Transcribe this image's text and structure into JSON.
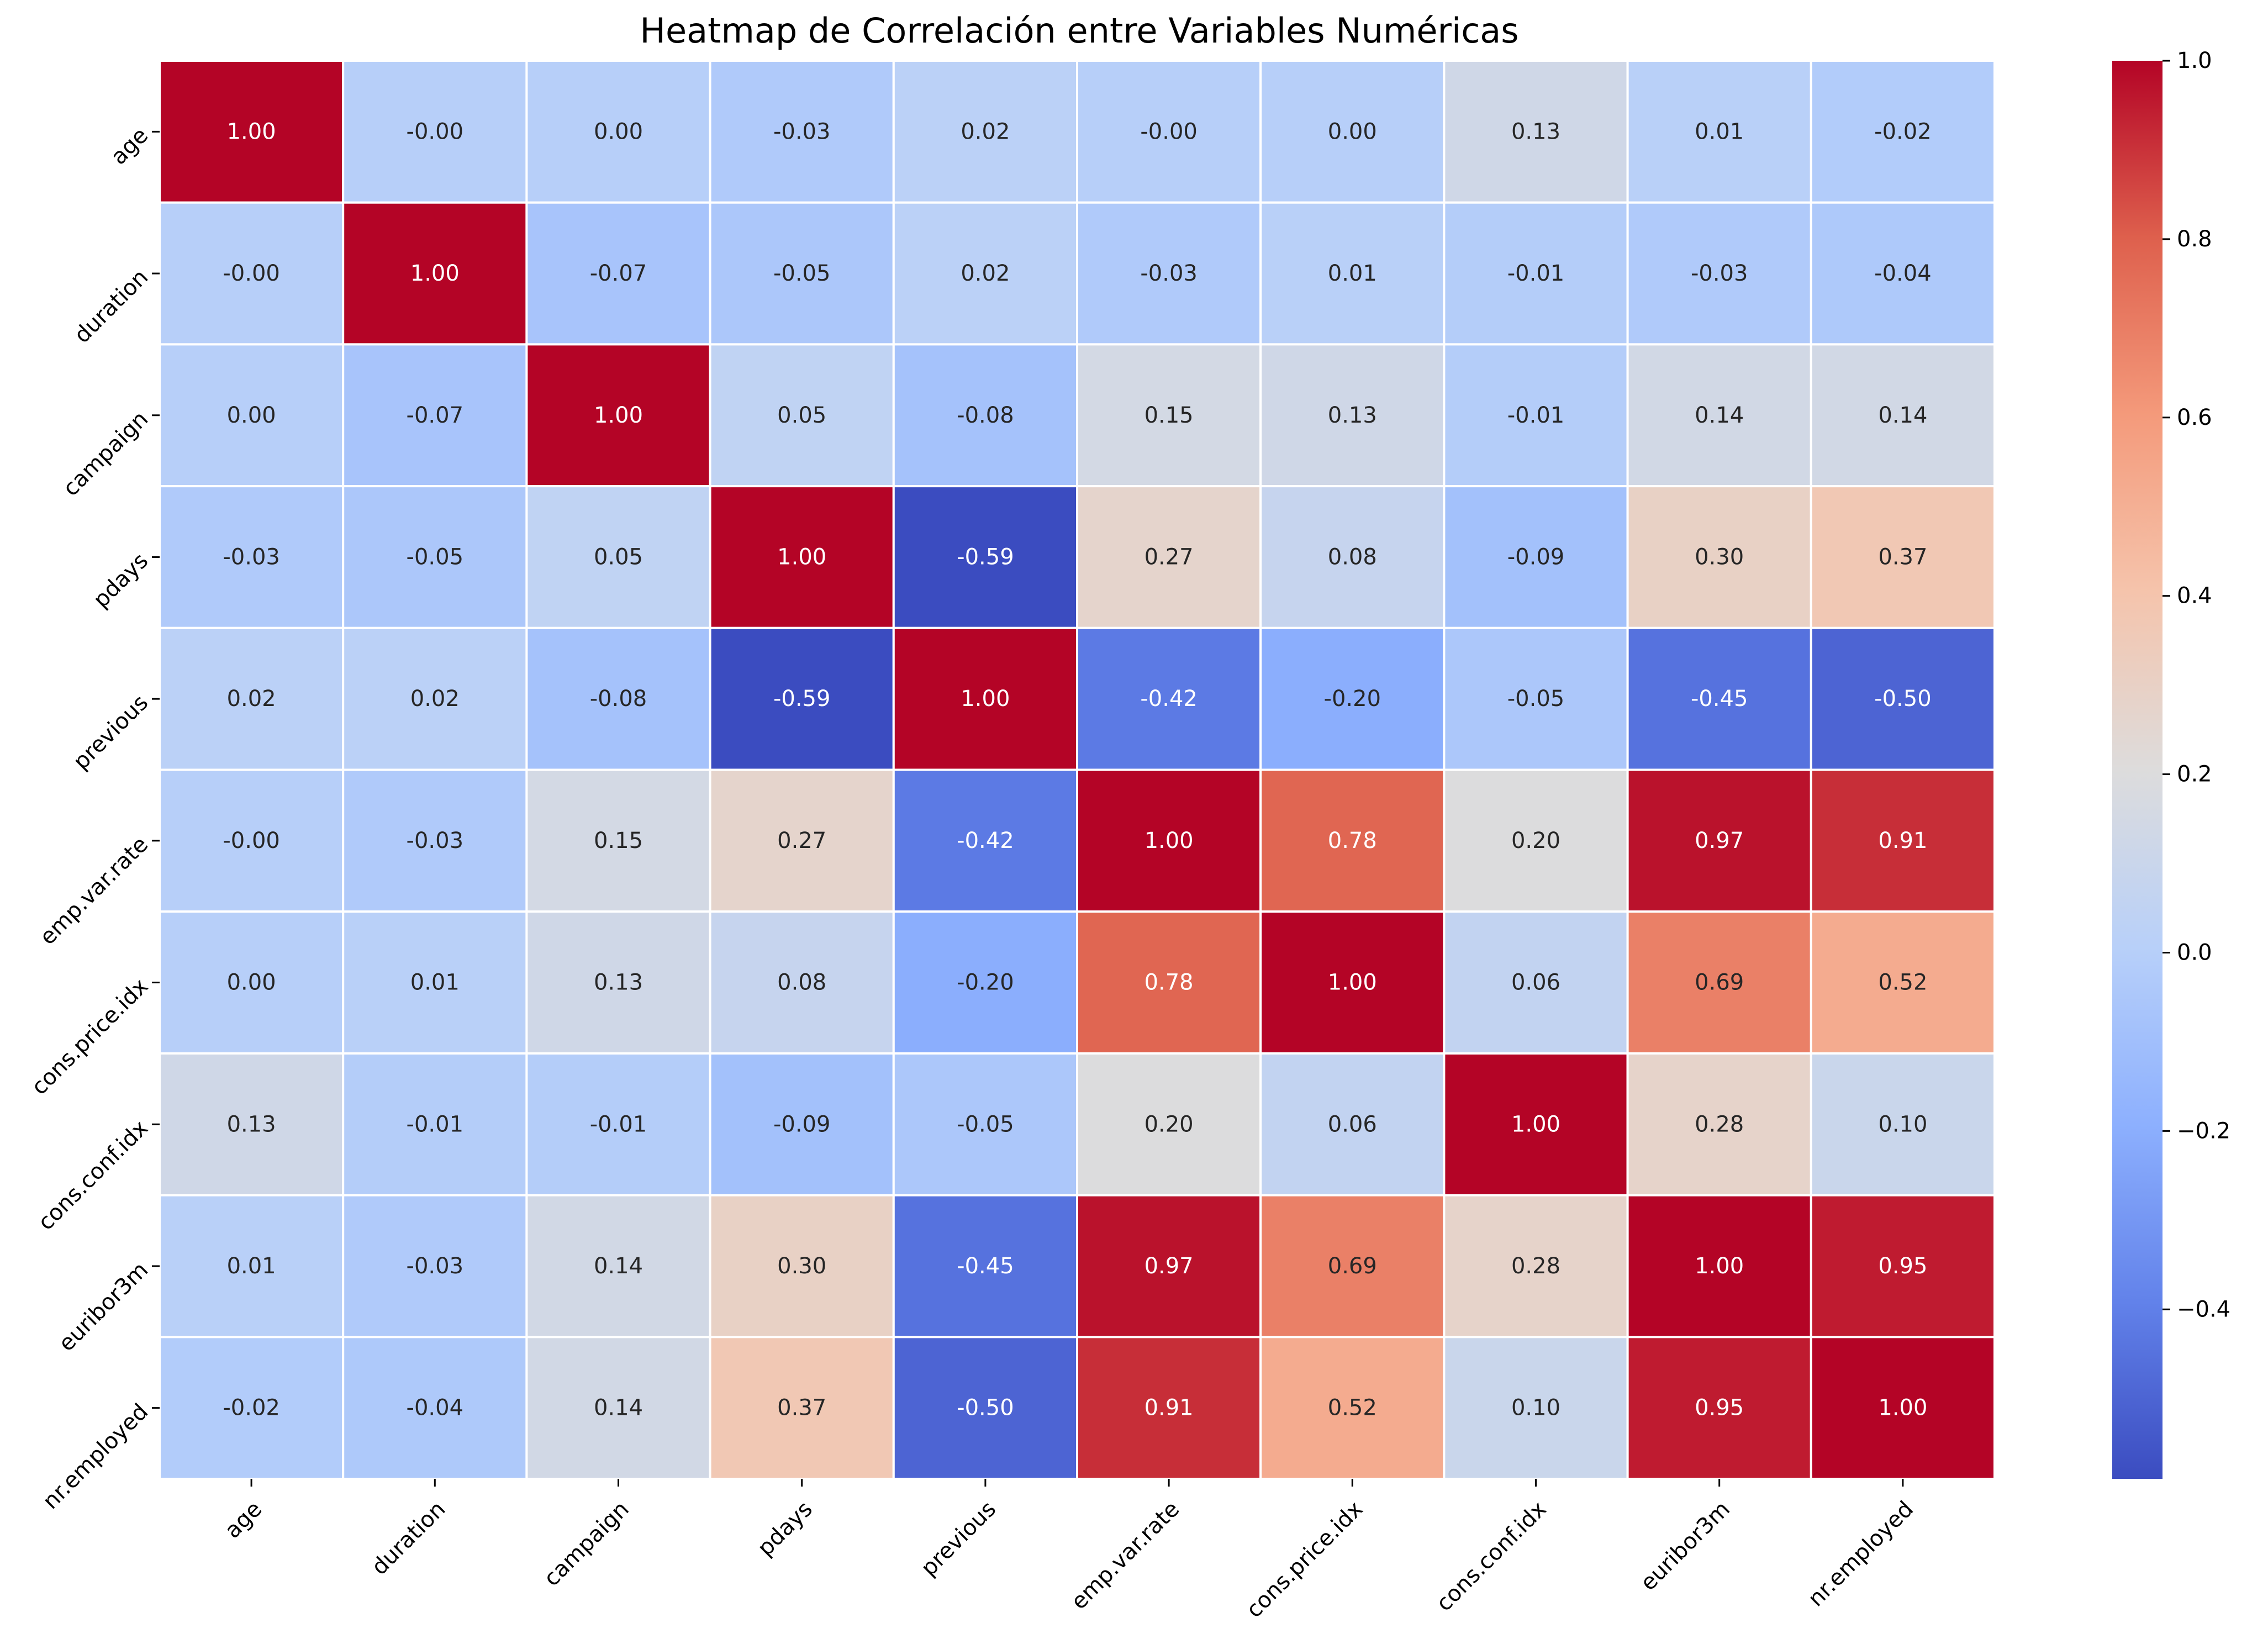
{
  "chart_data": {
    "type": "heatmap",
    "title": "Heatmap de Correlación entre Variables Numéricas",
    "row_labels": [
      "age",
      "duration",
      "campaign",
      "pdays",
      "previous",
      "emp.var.rate",
      "cons.price.idx",
      "cons.conf.idx",
      "euribor3m",
      "nr.employed"
    ],
    "col_labels": [
      "age",
      "duration",
      "campaign",
      "pdays",
      "previous",
      "emp.var.rate",
      "cons.price.idx",
      "cons.conf.idx",
      "euribor3m",
      "nr.employed"
    ],
    "values": [
      [
        1.0,
        -0.0,
        0.0,
        -0.03,
        0.02,
        -0.0,
        0.0,
        0.13,
        0.01,
        -0.02
      ],
      [
        -0.0,
        1.0,
        -0.07,
        -0.05,
        0.02,
        -0.03,
        0.01,
        -0.01,
        -0.03,
        -0.04
      ],
      [
        0.0,
        -0.07,
        1.0,
        0.05,
        -0.08,
        0.15,
        0.13,
        -0.01,
        0.14,
        0.14
      ],
      [
        -0.03,
        -0.05,
        0.05,
        1.0,
        -0.59,
        0.27,
        0.08,
        -0.09,
        0.3,
        0.37
      ],
      [
        0.02,
        0.02,
        -0.08,
        -0.59,
        1.0,
        -0.42,
        -0.2,
        -0.05,
        -0.45,
        -0.5
      ],
      [
        -0.0,
        -0.03,
        0.15,
        0.27,
        -0.42,
        1.0,
        0.78,
        0.2,
        0.97,
        0.91
      ],
      [
        0.0,
        0.01,
        0.13,
        0.08,
        -0.2,
        0.78,
        1.0,
        0.06,
        0.69,
        0.52
      ],
      [
        0.13,
        -0.01,
        -0.01,
        -0.09,
        -0.05,
        0.2,
        0.06,
        1.0,
        0.28,
        0.1
      ],
      [
        0.01,
        -0.03,
        0.14,
        0.3,
        -0.45,
        0.97,
        0.69,
        0.28,
        1.0,
        0.95
      ],
      [
        -0.02,
        -0.04,
        0.14,
        0.37,
        -0.5,
        0.91,
        0.52,
        0.1,
        0.95,
        1.0
      ]
    ],
    "cell_labels": [
      [
        "1.00",
        "-0.00",
        "0.00",
        "-0.03",
        "0.02",
        "-0.00",
        "0.00",
        "0.13",
        "0.01",
        "-0.02"
      ],
      [
        "-0.00",
        "1.00",
        "-0.07",
        "-0.05",
        "0.02",
        "-0.03",
        "0.01",
        "-0.01",
        "-0.03",
        "-0.04"
      ],
      [
        "0.00",
        "-0.07",
        "1.00",
        "0.05",
        "-0.08",
        "0.15",
        "0.13",
        "-0.01",
        "0.14",
        "0.14"
      ],
      [
        "-0.03",
        "-0.05",
        "0.05",
        "1.00",
        "-0.59",
        "0.27",
        "0.08",
        "-0.09",
        "0.30",
        "0.37"
      ],
      [
        "0.02",
        "0.02",
        "-0.08",
        "-0.59",
        "1.00",
        "-0.42",
        "-0.20",
        "-0.05",
        "-0.45",
        "-0.50"
      ],
      [
        "-0.00",
        "-0.03",
        "0.15",
        "0.27",
        "-0.42",
        "1.00",
        "0.78",
        "0.20",
        "0.97",
        "0.91"
      ],
      [
        "0.00",
        "0.01",
        "0.13",
        "0.08",
        "-0.20",
        "0.78",
        "1.00",
        "0.06",
        "0.69",
        "0.52"
      ],
      [
        "0.13",
        "-0.01",
        "-0.01",
        "-0.09",
        "-0.05",
        "0.20",
        "0.06",
        "1.00",
        "0.28",
        "0.10"
      ],
      [
        "0.01",
        "-0.03",
        "0.14",
        "0.30",
        "-0.45",
        "0.97",
        "0.69",
        "0.28",
        "1.00",
        "0.95"
      ],
      [
        "-0.02",
        "-0.04",
        "0.14",
        "0.37",
        "-0.50",
        "0.91",
        "0.52",
        "0.10",
        "0.95",
        "1.00"
      ]
    ],
    "colormap": "coolwarm",
    "colormap_stops": [
      "#3b4cc0",
      "#6282ea",
      "#8db0fe",
      "#b8d0f9",
      "#dddcdc",
      "#f5c4ac",
      "#f49a7b",
      "#de604d",
      "#b40426"
    ],
    "vmin": -0.59,
    "vmax": 1.0,
    "colorbar_ticks": [
      {
        "value": -0.4,
        "label": "−0.4"
      },
      {
        "value": -0.2,
        "label": "−0.2"
      },
      {
        "value": 0.0,
        "label": "0.0"
      },
      {
        "value": 0.2,
        "label": "0.2"
      },
      {
        "value": 0.4,
        "label": "0.4"
      },
      {
        "value": 0.6,
        "label": "0.6"
      },
      {
        "value": 0.8,
        "label": "0.8"
      },
      {
        "value": 1.0,
        "label": "1.0"
      }
    ],
    "xlabel": "",
    "ylabel": "",
    "grid": false,
    "legend": "colorbar-right",
    "text_color_light": "#ffffff",
    "text_color_dark": "#262626",
    "cell_border_color": "#ffffff"
  }
}
